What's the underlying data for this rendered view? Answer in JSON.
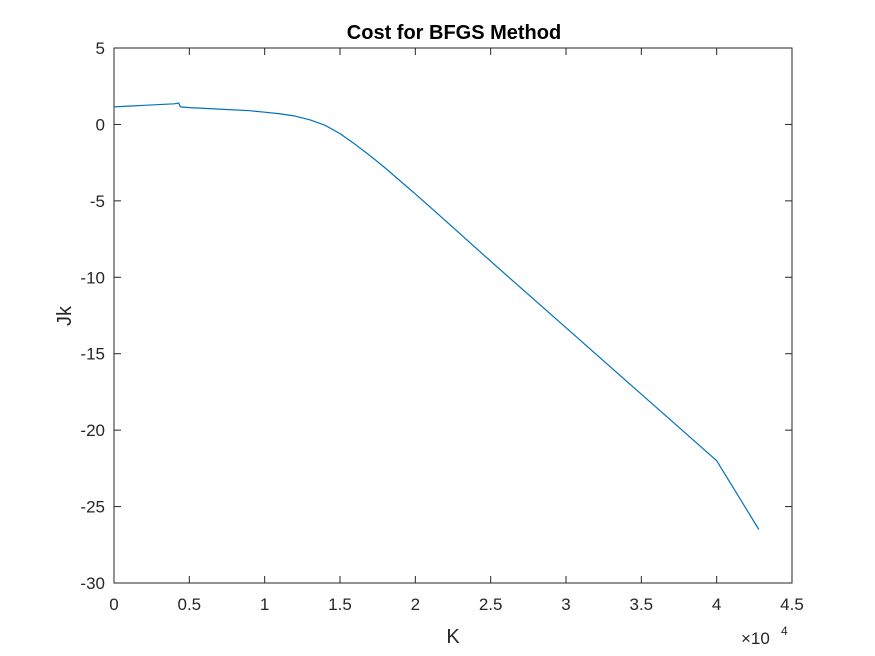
{
  "chart_data": {
    "type": "line",
    "title": "Cost for BFGS Method",
    "xlabel": "K",
    "ylabel": "Jk",
    "x_exponent_label": {
      "base": "×10",
      "exponent": "4"
    },
    "xlim": [
      0,
      4.5
    ],
    "ylim": [
      -30,
      5
    ],
    "x_ticks": [
      0,
      0.5,
      1,
      1.5,
      2,
      2.5,
      3,
      3.5,
      4,
      4.5
    ],
    "x_tick_labels": [
      "0",
      "0.5",
      "1",
      "1.5",
      "2",
      "2.5",
      "3",
      "3.5",
      "4",
      "4.5"
    ],
    "y_ticks": [
      5,
      0,
      -5,
      -10,
      -15,
      -20,
      -25,
      -30
    ],
    "y_tick_labels": [
      "5",
      "0",
      "-5",
      "-10",
      "-15",
      "-20",
      "-25",
      "-30"
    ],
    "grid": false,
    "legend": "none",
    "series": [
      {
        "color": "#0072bd",
        "x": [
          0,
          0.1,
          0.2,
          0.3,
          0.4,
          0.43,
          0.44,
          0.5,
          0.7,
          0.9,
          1.0,
          1.1,
          1.2,
          1.3,
          1.4,
          1.5,
          1.6,
          1.7,
          1.8,
          1.9,
          2.0,
          2.2,
          2.5,
          3.0,
          3.5,
          4.0,
          4.28
        ],
        "y": [
          1.15,
          1.2,
          1.25,
          1.3,
          1.35,
          1.4,
          1.15,
          1.1,
          1.0,
          0.9,
          0.8,
          0.7,
          0.55,
          0.3,
          -0.05,
          -0.6,
          -1.3,
          -2.05,
          -2.85,
          -3.7,
          -4.55,
          -6.3,
          -8.95,
          -13.3,
          -17.65,
          -22.0,
          -26.5
        ]
      }
    ]
  }
}
